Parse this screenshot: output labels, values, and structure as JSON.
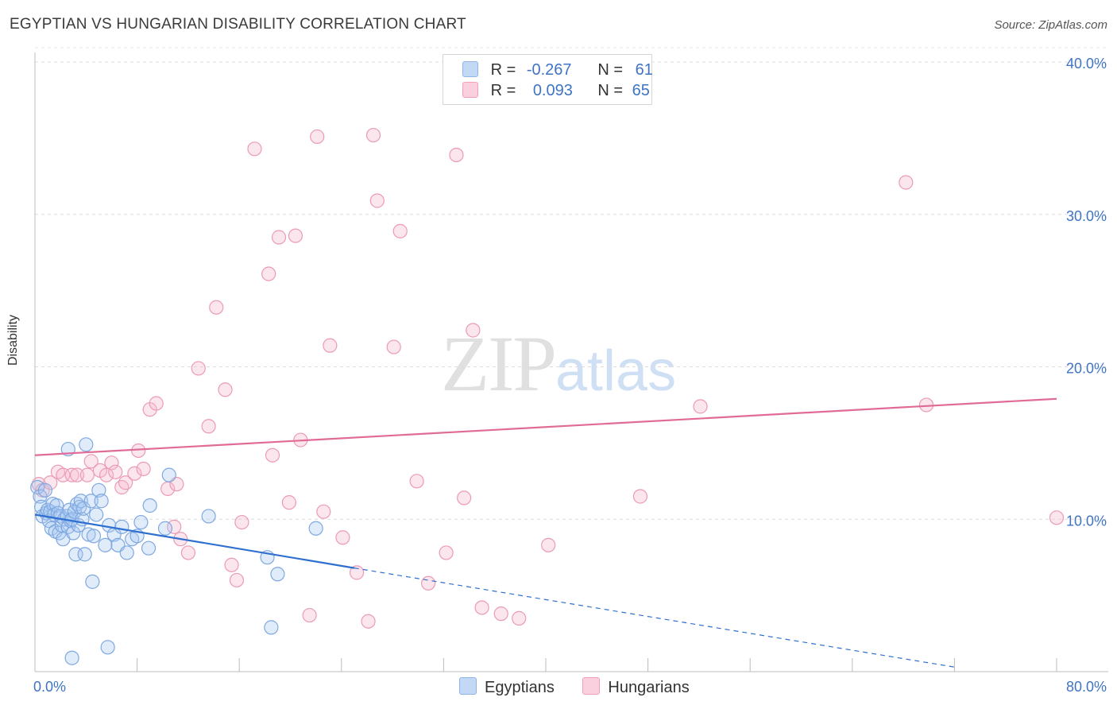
{
  "header": {
    "title": "EGYPTIAN VS HUNGARIAN DISABILITY CORRELATION CHART",
    "source": "Source: ZipAtlas.com"
  },
  "watermark": {
    "zip": "ZIP",
    "atlas": "atlas"
  },
  "legend": {
    "rows": [
      {
        "r_label": "R =",
        "r_value": "-0.267",
        "n_label": "N =",
        "n_value": "61",
        "color": "#a8c8f0"
      },
      {
        "r_label": "R =",
        "r_value": "0.093",
        "n_label": "N =",
        "n_value": "65",
        "color": "#f7b8cc"
      }
    ]
  },
  "bottom_legend": {
    "items": [
      "Egyptians",
      "Hungarians"
    ]
  },
  "chart_data": {
    "type": "scatter",
    "title": "EGYPTIAN VS HUNGARIAN DISABILITY CORRELATION CHART",
    "ylabel": "Disability",
    "xlim": [
      0,
      80
    ],
    "ylim": [
      0,
      40
    ],
    "x_tick_labels": [
      "0.0%",
      "80.0%"
    ],
    "y_ticks": [
      10,
      20,
      30,
      40
    ],
    "y_tick_labels": [
      "10.0%",
      "20.0%",
      "30.0%",
      "40.0%"
    ],
    "grid": true,
    "colors": {
      "egyptians": "#5b8fd6",
      "hungarians": "#e07aa0",
      "egyptians_line": "#2f6fd0",
      "hungarians_line": "#e06b96"
    },
    "series": [
      {
        "name": "Egyptians",
        "r": -0.267,
        "n": 61,
        "trend": {
          "x0": 0,
          "y0": 10.3,
          "x1": 25,
          "y1": 6.8,
          "dash_x1": 72,
          "dash_y1": 0.3
        },
        "points": [
          [
            0.2,
            12.1
          ],
          [
            0.4,
            11.5
          ],
          [
            0.5,
            10.8
          ],
          [
            0.6,
            10.2
          ],
          [
            0.8,
            11.9
          ],
          [
            0.9,
            10.4
          ],
          [
            1.0,
            10.6
          ],
          [
            1.1,
            9.9
          ],
          [
            1.2,
            10.5
          ],
          [
            1.3,
            9.4
          ],
          [
            1.4,
            11.0
          ],
          [
            1.5,
            10.3
          ],
          [
            1.6,
            9.2
          ],
          [
            1.7,
            10.9
          ],
          [
            1.8,
            10.4
          ],
          [
            1.9,
            9.1
          ],
          [
            2.0,
            10.2
          ],
          [
            2.1,
            9.6
          ],
          [
            2.2,
            8.7
          ],
          [
            2.3,
            10.0
          ],
          [
            2.5,
            10.2
          ],
          [
            2.6,
            9.5
          ],
          [
            2.7,
            10.6
          ],
          [
            2.8,
            9.9
          ],
          [
            2.9,
            10.0
          ],
          [
            3.0,
            9.1
          ],
          [
            3.1,
            10.5
          ],
          [
            3.2,
            7.7
          ],
          [
            3.3,
            11.0
          ],
          [
            3.4,
            9.6
          ],
          [
            3.5,
            10.8
          ],
          [
            3.6,
            11.2
          ],
          [
            3.7,
            10.0
          ],
          [
            3.8,
            10.7
          ],
          [
            3.9,
            7.7
          ],
          [
            4.0,
            14.9
          ],
          [
            4.2,
            9.0
          ],
          [
            4.4,
            11.2
          ],
          [
            4.6,
            8.9
          ],
          [
            4.8,
            10.3
          ],
          [
            5.0,
            11.9
          ],
          [
            5.2,
            11.2
          ],
          [
            5.5,
            8.3
          ],
          [
            5.8,
            9.6
          ],
          [
            6.2,
            9.0
          ],
          [
            6.5,
            8.3
          ],
          [
            6.8,
            9.5
          ],
          [
            7.2,
            7.8
          ],
          [
            7.6,
            8.7
          ],
          [
            8.0,
            8.9
          ],
          [
            8.3,
            9.8
          ],
          [
            8.9,
            8.1
          ],
          [
            9.0,
            10.9
          ],
          [
            10.2,
            9.4
          ],
          [
            10.5,
            12.9
          ],
          [
            13.6,
            10.2
          ],
          [
            18.2,
            7.5
          ],
          [
            19.0,
            6.4
          ],
          [
            22.0,
            9.4
          ],
          [
            2.6,
            14.6
          ],
          [
            4.5,
            5.9
          ]
        ]
      },
      {
        "name": "Hungarians",
        "r": 0.093,
        "n": 65,
        "trend": {
          "x0": 0,
          "y0": 14.2,
          "x1": 80,
          "y1": 17.9
        },
        "points": [
          [
            0.3,
            12.3
          ],
          [
            0.6,
            11.9
          ],
          [
            1.2,
            12.4
          ],
          [
            1.8,
            13.1
          ],
          [
            2.2,
            12.9
          ],
          [
            2.9,
            12.9
          ],
          [
            3.3,
            12.9
          ],
          [
            4.1,
            12.9
          ],
          [
            4.4,
            13.8
          ],
          [
            5.1,
            13.2
          ],
          [
            5.6,
            12.9
          ],
          [
            6.0,
            13.7
          ],
          [
            6.3,
            13.1
          ],
          [
            6.8,
            12.1
          ],
          [
            7.1,
            12.4
          ],
          [
            7.8,
            13.0
          ],
          [
            8.1,
            14.5
          ],
          [
            8.5,
            13.3
          ],
          [
            9.0,
            17.2
          ],
          [
            9.5,
            17.6
          ],
          [
            10.4,
            12.0
          ],
          [
            10.9,
            9.5
          ],
          [
            11.1,
            12.3
          ],
          [
            11.4,
            8.7
          ],
          [
            12.0,
            7.8
          ],
          [
            12.8,
            19.9
          ],
          [
            13.6,
            16.1
          ],
          [
            14.2,
            23.9
          ],
          [
            14.9,
            18.5
          ],
          [
            15.4,
            7.0
          ],
          [
            15.8,
            6.0
          ],
          [
            16.2,
            9.8
          ],
          [
            17.2,
            34.3
          ],
          [
            18.3,
            26.1
          ],
          [
            18.6,
            14.2
          ],
          [
            19.1,
            28.5
          ],
          [
            19.9,
            11.1
          ],
          [
            20.4,
            28.6
          ],
          [
            20.8,
            15.2
          ],
          [
            21.5,
            3.7
          ],
          [
            22.1,
            35.1
          ],
          [
            22.6,
            10.5
          ],
          [
            23.1,
            21.4
          ],
          [
            24.1,
            8.8
          ],
          [
            25.2,
            6.5
          ],
          [
            26.1,
            3.3
          ],
          [
            26.5,
            35.2
          ],
          [
            26.8,
            30.9
          ],
          [
            28.1,
            21.3
          ],
          [
            28.6,
            28.9
          ],
          [
            29.9,
            12.5
          ],
          [
            30.8,
            5.8
          ],
          [
            32.2,
            7.8
          ],
          [
            33.0,
            33.9
          ],
          [
            33.6,
            11.4
          ],
          [
            34.3,
            22.4
          ],
          [
            35.0,
            4.2
          ],
          [
            36.5,
            3.8
          ],
          [
            37.9,
            3.5
          ],
          [
            40.2,
            8.3
          ],
          [
            47.4,
            11.5
          ],
          [
            52.1,
            17.4
          ],
          [
            68.2,
            32.1
          ],
          [
            69.8,
            17.5
          ],
          [
            80.0,
            10.1
          ]
        ]
      }
    ]
  }
}
